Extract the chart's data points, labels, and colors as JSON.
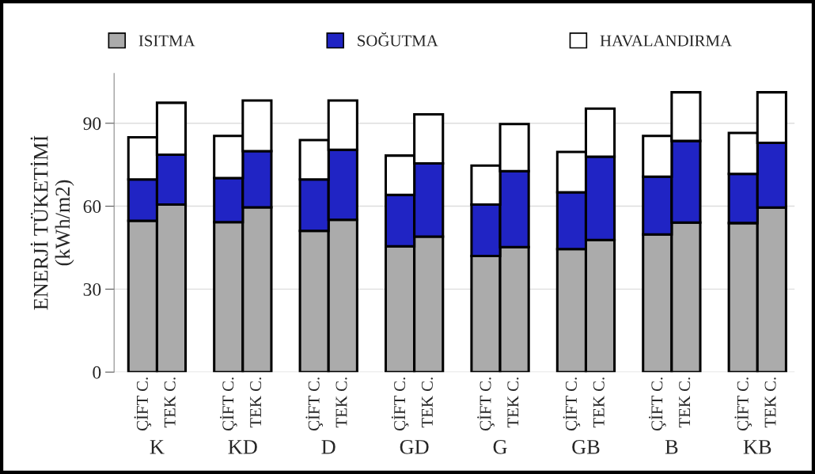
{
  "chart_data": {
    "type": "bar",
    "stacked": true,
    "ylabel": "ENERJİ TÜKETİMİ\n(kWh/m2)",
    "categories": [
      "ÇİFT C.",
      "TEK C.",
      "ÇİFT C.",
      "TEK C.",
      "ÇİFT C.",
      "TEK C.",
      "ÇİFT C.",
      "TEK C.",
      "ÇİFT C.",
      "TEK C.",
      "ÇİFT C.",
      "TEK C.",
      "ÇİFT C.",
      "TEK C.",
      "ÇİFT C.",
      "TEK C."
    ],
    "annotations": [
      "K",
      "KD",
      "D",
      "GD",
      "G",
      "GB",
      "B",
      "KB"
    ],
    "series": [
      {
        "name": "ISITMA",
        "color": "#ababab",
        "values": [
          54.7,
          60.6,
          54.2,
          59.6,
          51.1,
          55.1,
          45.5,
          49.0,
          42.0,
          45.2,
          44.5,
          47.8,
          49.8,
          54.1,
          53.9,
          59.5
        ]
      },
      {
        "name": "SOĞUTMA",
        "color": "#2024c4",
        "values": [
          15.0,
          18.0,
          16.0,
          20.3,
          18.6,
          25.3,
          18.6,
          26.5,
          18.6,
          27.5,
          20.5,
          30.1,
          20.9,
          29.5,
          17.8,
          23.4
        ]
      },
      {
        "name": "HAVALANDIRMA",
        "color": "#ffffff",
        "values": [
          15.2,
          18.8,
          15.2,
          18.3,
          14.2,
          17.8,
          14.2,
          17.7,
          14.1,
          17.0,
          14.6,
          17.4,
          14.7,
          17.6,
          14.8,
          18.3
        ]
      }
    ],
    "ylim": [
      0,
      108
    ],
    "yticks": [
      0,
      30,
      60,
      90
    ],
    "grid": "y",
    "legend": "top"
  }
}
